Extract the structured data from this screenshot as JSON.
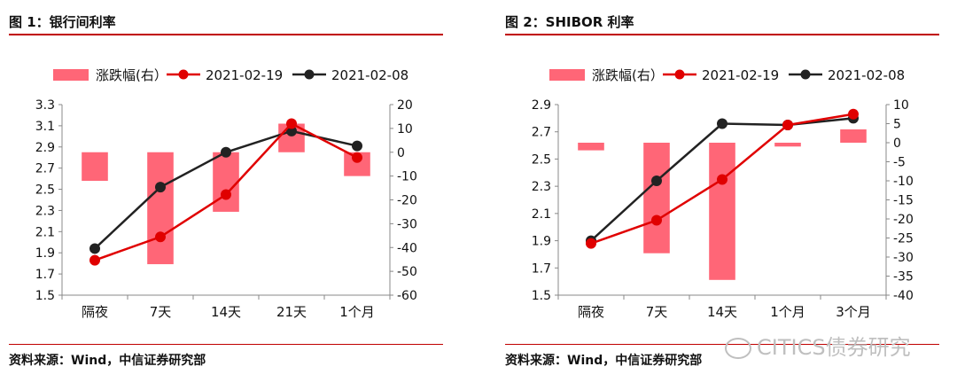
{
  "panels": [
    {
      "title": "图 1：银行间利率",
      "source": "资料来源：Wind，中信证券研究部"
    },
    {
      "title": "图 2：SHIBOR 利率",
      "source": "资料来源：Wind，中信证券研究部"
    }
  ],
  "watermark": "CITICS债券研究",
  "colors": {
    "accent": "#c00000",
    "bar": "#ff6677",
    "line_new": "#e00000",
    "line_old": "#222222"
  },
  "chart_data": [
    {
      "type": "bar",
      "categories": [
        "隔夜",
        "7天",
        "14天",
        "21天",
        "1个月"
      ],
      "series": [
        {
          "name": "涨跌幅(右）",
          "kind": "bar",
          "axis": "right",
          "values": [
            -12,
            -47,
            -25,
            12,
            -10
          ]
        },
        {
          "name": "2021-02-19",
          "kind": "line",
          "axis": "left",
          "values": [
            1.83,
            2.05,
            2.45,
            3.12,
            2.8
          ]
        },
        {
          "name": "2021-02-08",
          "kind": "line",
          "axis": "left",
          "values": [
            1.94,
            2.52,
            2.85,
            3.05,
            2.91
          ]
        }
      ],
      "ylim_left": [
        1.5,
        3.3
      ],
      "yticks_left": [
        "3.3",
        "3.1",
        "2.9",
        "2.7",
        "2.5",
        "2.3",
        "2.1",
        "1.9",
        "1.7",
        "1.5"
      ],
      "ylim_right": [
        -60,
        20
      ],
      "yticks_right": [
        "20",
        "10",
        "0",
        "-10",
        "-20",
        "-30",
        "-40",
        "-50",
        "-60"
      ],
      "legend": "top"
    },
    {
      "type": "bar",
      "categories": [
        "隔夜",
        "7天",
        "14天",
        "1个月",
        "3个月"
      ],
      "series": [
        {
          "name": "涨跌幅(右）",
          "kind": "bar",
          "axis": "right",
          "values": [
            -2,
            -29,
            -36,
            -1,
            3.5
          ]
        },
        {
          "name": "2021-02-19",
          "kind": "line",
          "axis": "left",
          "values": [
            1.88,
            2.05,
            2.35,
            2.75,
            2.83
          ]
        },
        {
          "name": "2021-02-08",
          "kind": "line",
          "axis": "left",
          "values": [
            1.9,
            2.34,
            2.76,
            2.75,
            2.8
          ]
        }
      ],
      "ylim_left": [
        1.5,
        2.9
      ],
      "yticks_left": [
        "2.9",
        "2.7",
        "2.5",
        "2.3",
        "2.1",
        "1.9",
        "1.7",
        "1.5"
      ],
      "ylim_right": [
        -40,
        10
      ],
      "yticks_right": [
        "10",
        "5",
        "0",
        "-5",
        "-10",
        "-15",
        "-20",
        "-25",
        "-30",
        "-35",
        "-40"
      ],
      "legend": "top"
    }
  ]
}
